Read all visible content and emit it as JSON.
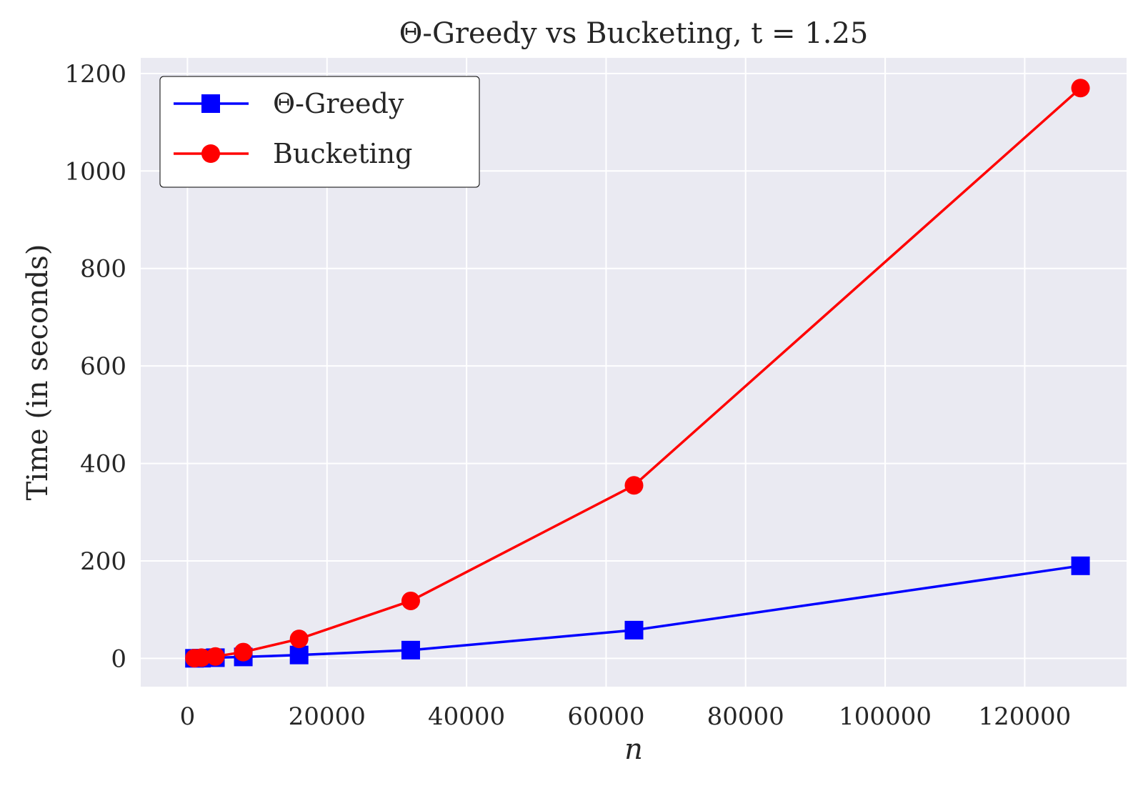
{
  "chart_data": {
    "type": "line",
    "title": "Θ-Greedy vs Bucketing, t = 1.25",
    "xlabel": "n",
    "ylabel": "Time (in seconds)",
    "xlim": [
      -6700,
      134600
    ],
    "ylim": [
      -58,
      1232
    ],
    "x_ticks": [
      0,
      20000,
      40000,
      60000,
      80000,
      100000,
      120000
    ],
    "y_ticks": [
      0,
      200,
      400,
      600,
      800,
      1000,
      1200
    ],
    "grid": true,
    "legend_position": "top-left",
    "background": "#eaeaf2",
    "series": [
      {
        "name": "Θ-Greedy",
        "color": "#0000ff",
        "marker": "square",
        "x": [
          1000,
          2000,
          4000,
          8000,
          16000,
          32000,
          64000,
          128000
        ],
        "y": [
          0.2,
          0.5,
          1.5,
          3,
          7,
          17,
          58,
          190
        ]
      },
      {
        "name": "Bucketing",
        "color": "#ff0000",
        "marker": "circle",
        "x": [
          1000,
          2000,
          4000,
          8000,
          16000,
          32000,
          64000,
          128000
        ],
        "y": [
          0.5,
          1.5,
          4,
          13,
          40,
          118,
          355,
          1170
        ]
      }
    ]
  }
}
